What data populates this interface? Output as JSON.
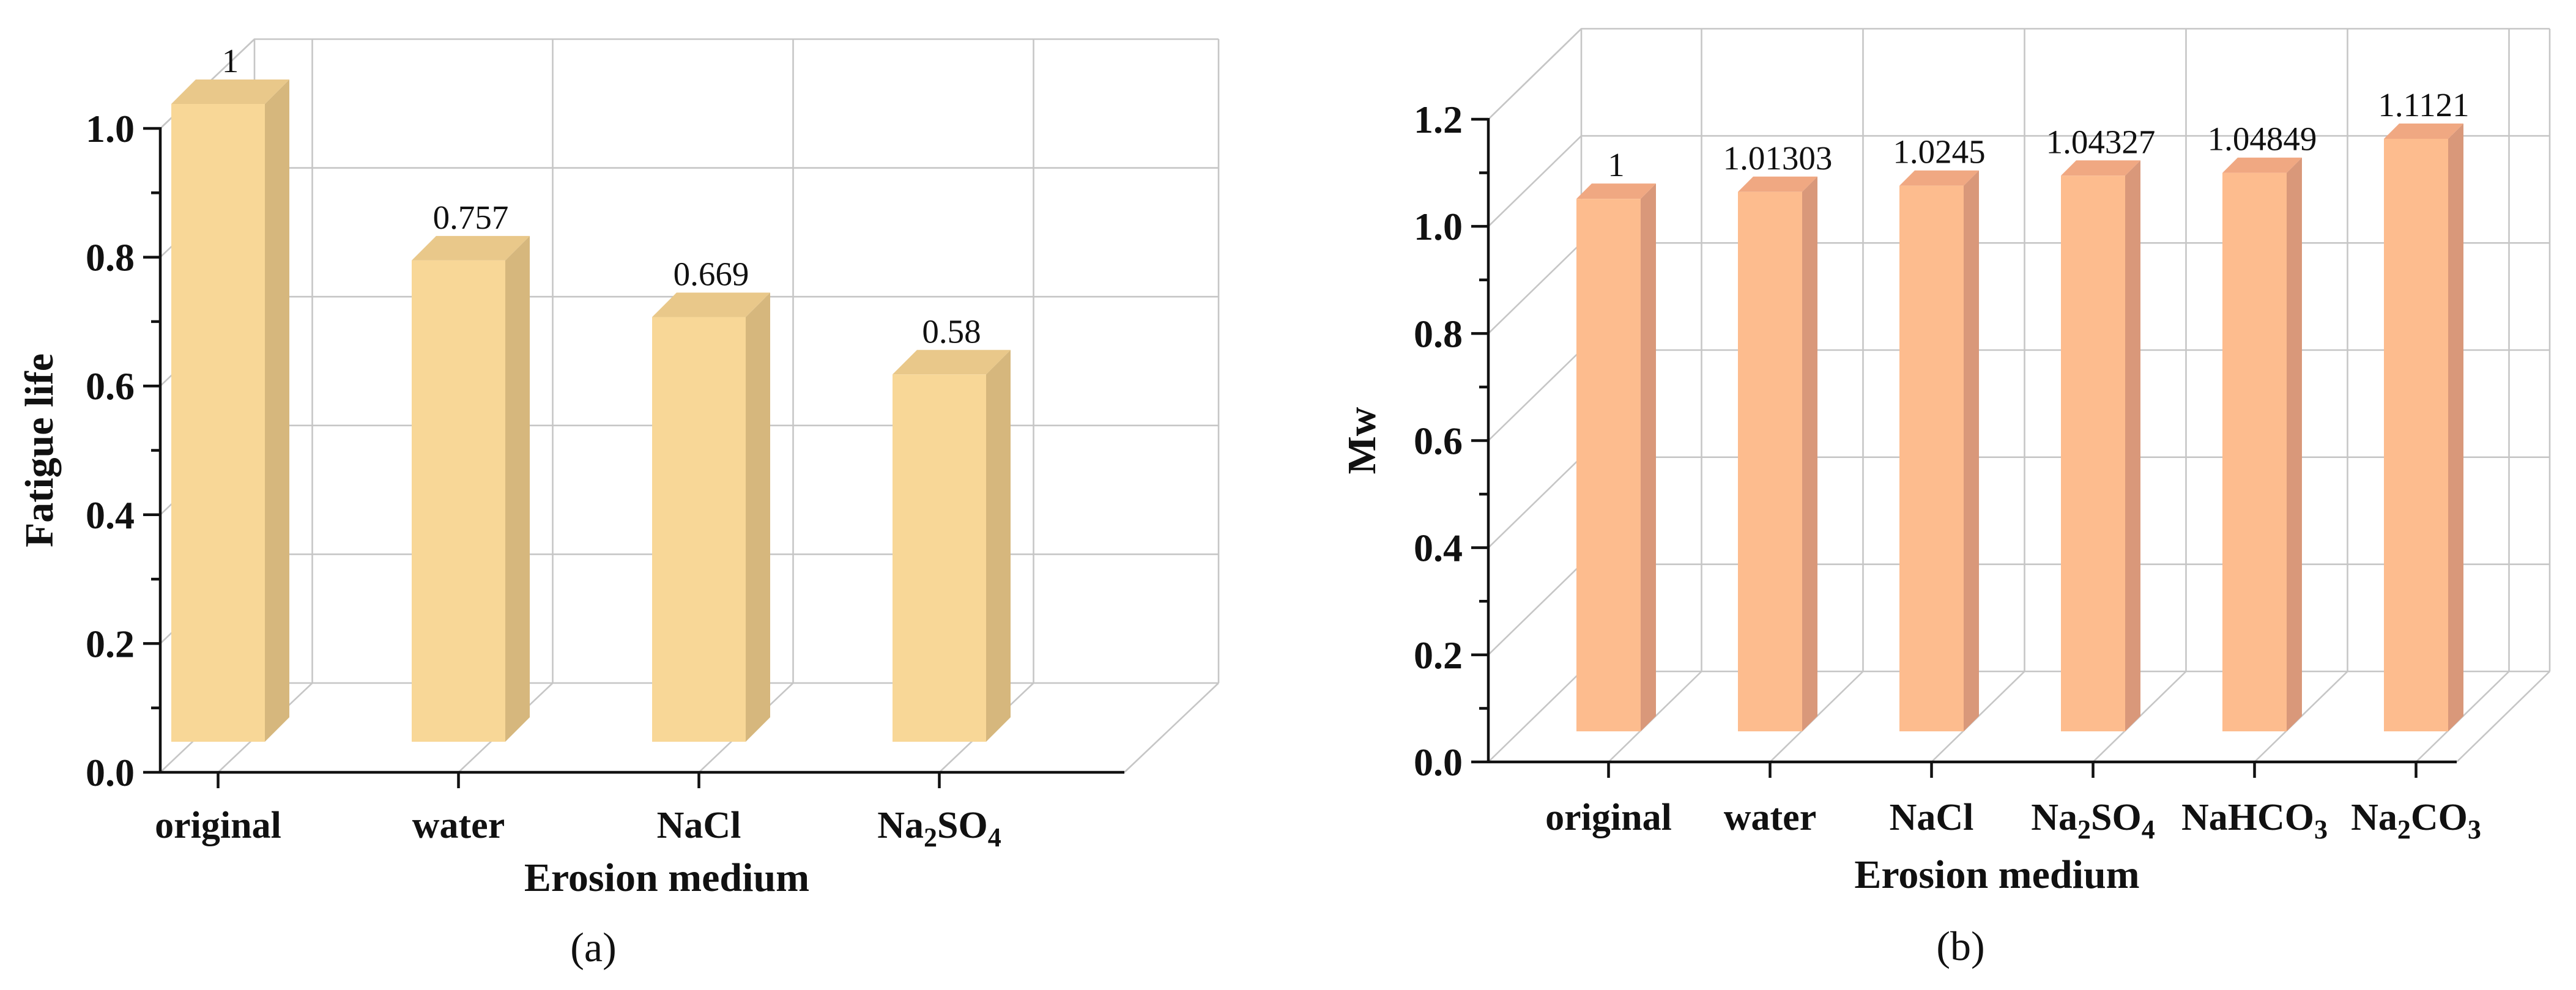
{
  "chart_data": [
    {
      "type": "bar",
      "panel_label": "(a)",
      "categories": [
        "original",
        "water",
        "NaCl",
        "Na2SO4"
      ],
      "category_labels": [
        {
          "text": "original"
        },
        {
          "text": "water"
        },
        {
          "text": "NaCl"
        },
        {
          "text": "Na",
          "sub1": "2",
          "mid": "SO",
          "sub2": "4"
        }
      ],
      "values": [
        1,
        0.757,
        0.669,
        0.58
      ],
      "value_labels": [
        "1",
        "0.757",
        "0.669",
        "0.58"
      ],
      "xlabel": "Erosion medium",
      "ylabel": "Fatigue life",
      "ylim": [
        0,
        1.0
      ],
      "yticks": [
        0,
        0.2,
        0.4,
        0.6,
        0.8,
        1.0
      ],
      "ytick_labels": [
        "0.0",
        "0.2",
        "0.4",
        "0.6",
        "0.8",
        "1.0"
      ],
      "grid": true,
      "style": "3d",
      "colors": {
        "front": "#F8D797",
        "side": "#D6B77D",
        "top": "#E9C88A"
      }
    },
    {
      "type": "bar",
      "panel_label": "(b)",
      "categories": [
        "original",
        "water",
        "NaCl",
        "Na2SO4",
        "NaHCO3",
        "Na2CO3"
      ],
      "category_labels": [
        {
          "text": "original"
        },
        {
          "text": "water"
        },
        {
          "text": "NaCl"
        },
        {
          "text": "Na",
          "sub1": "2",
          "mid": "SO",
          "sub2": "4"
        },
        {
          "text": "NaHCO",
          "sub1": "3"
        },
        {
          "text": "Na",
          "sub1": "2",
          "mid": "CO",
          "sub2": "3"
        }
      ],
      "values": [
        1,
        1.01303,
        1.0245,
        1.04327,
        1.04849,
        1.1121
      ],
      "value_labels": [
        "1",
        "1.01303",
        "1.0245",
        "1.04327",
        "1.04849",
        "1.1121"
      ],
      "xlabel": "Erosion medium",
      "ylabel": "Mw",
      "ylim": [
        0,
        1.2
      ],
      "yticks": [
        0,
        0.2,
        0.4,
        0.6,
        0.8,
        1.0,
        1.2
      ],
      "ytick_labels": [
        "0.0",
        "0.2",
        "0.4",
        "0.6",
        "0.8",
        "1.0",
        "1.2"
      ],
      "grid": true,
      "style": "3d",
      "colors": {
        "front": "#FDBC8E",
        "side": "#D9987A",
        "top": "#F0A882"
      }
    }
  ]
}
